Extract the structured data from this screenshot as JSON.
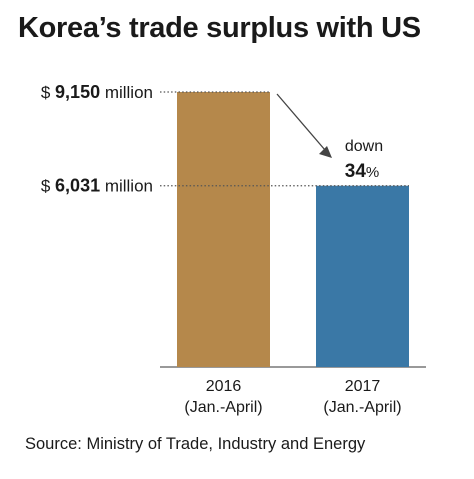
{
  "title": "Korea’s trade surplus with US",
  "source": "Source: Ministry of Trade, Industry and Energy",
  "chart_data": {
    "type": "bar",
    "unit": "million",
    "currency_symbol": "$",
    "categories": [
      {
        "year": "2016",
        "period": "(Jan.-April)"
      },
      {
        "year": "2017",
        "period": "(Jan.-April)"
      }
    ],
    "values": [
      9150,
      6031
    ],
    "value_labels": [
      "9,150",
      "6,031"
    ],
    "colors": [
      "#b5884b",
      "#3a78a6"
    ],
    "annotation": {
      "text": "down",
      "value": "34",
      "unit": "%"
    }
  }
}
